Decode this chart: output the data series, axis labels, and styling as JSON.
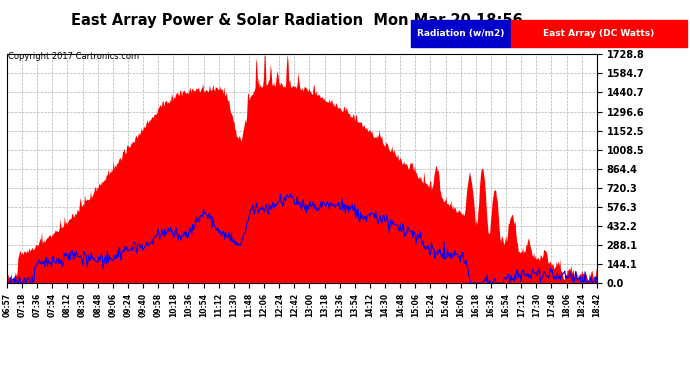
{
  "title": "East Array Power & Solar Radiation  Mon Mar 20 18:56",
  "copyright": "Copyright 2017 Cartronics.com",
  "legend_radiation": "Radiation (w/m2)",
  "legend_array": "East Array (DC Watts)",
  "y_ticks": [
    0.0,
    144.1,
    288.1,
    432.2,
    576.3,
    720.3,
    864.4,
    1008.5,
    1152.5,
    1296.6,
    1440.7,
    1584.7,
    1728.8
  ],
  "y_max": 1728.8,
  "background_color": "#ffffff",
  "plot_bg_color": "#ffffff",
  "grid_color": "#aaaaaa",
  "x_tick_labels": [
    "06:57",
    "07:18",
    "07:36",
    "07:54",
    "08:12",
    "08:30",
    "08:48",
    "09:06",
    "09:24",
    "09:40",
    "09:58",
    "10:18",
    "10:36",
    "10:54",
    "11:12",
    "11:30",
    "11:48",
    "12:06",
    "12:24",
    "12:42",
    "13:00",
    "13:18",
    "13:36",
    "13:54",
    "14:12",
    "14:30",
    "14:48",
    "15:06",
    "15:24",
    "15:42",
    "16:00",
    "16:18",
    "16:36",
    "16:54",
    "17:12",
    "17:30",
    "17:48",
    "18:06",
    "18:24",
    "18:42"
  ]
}
